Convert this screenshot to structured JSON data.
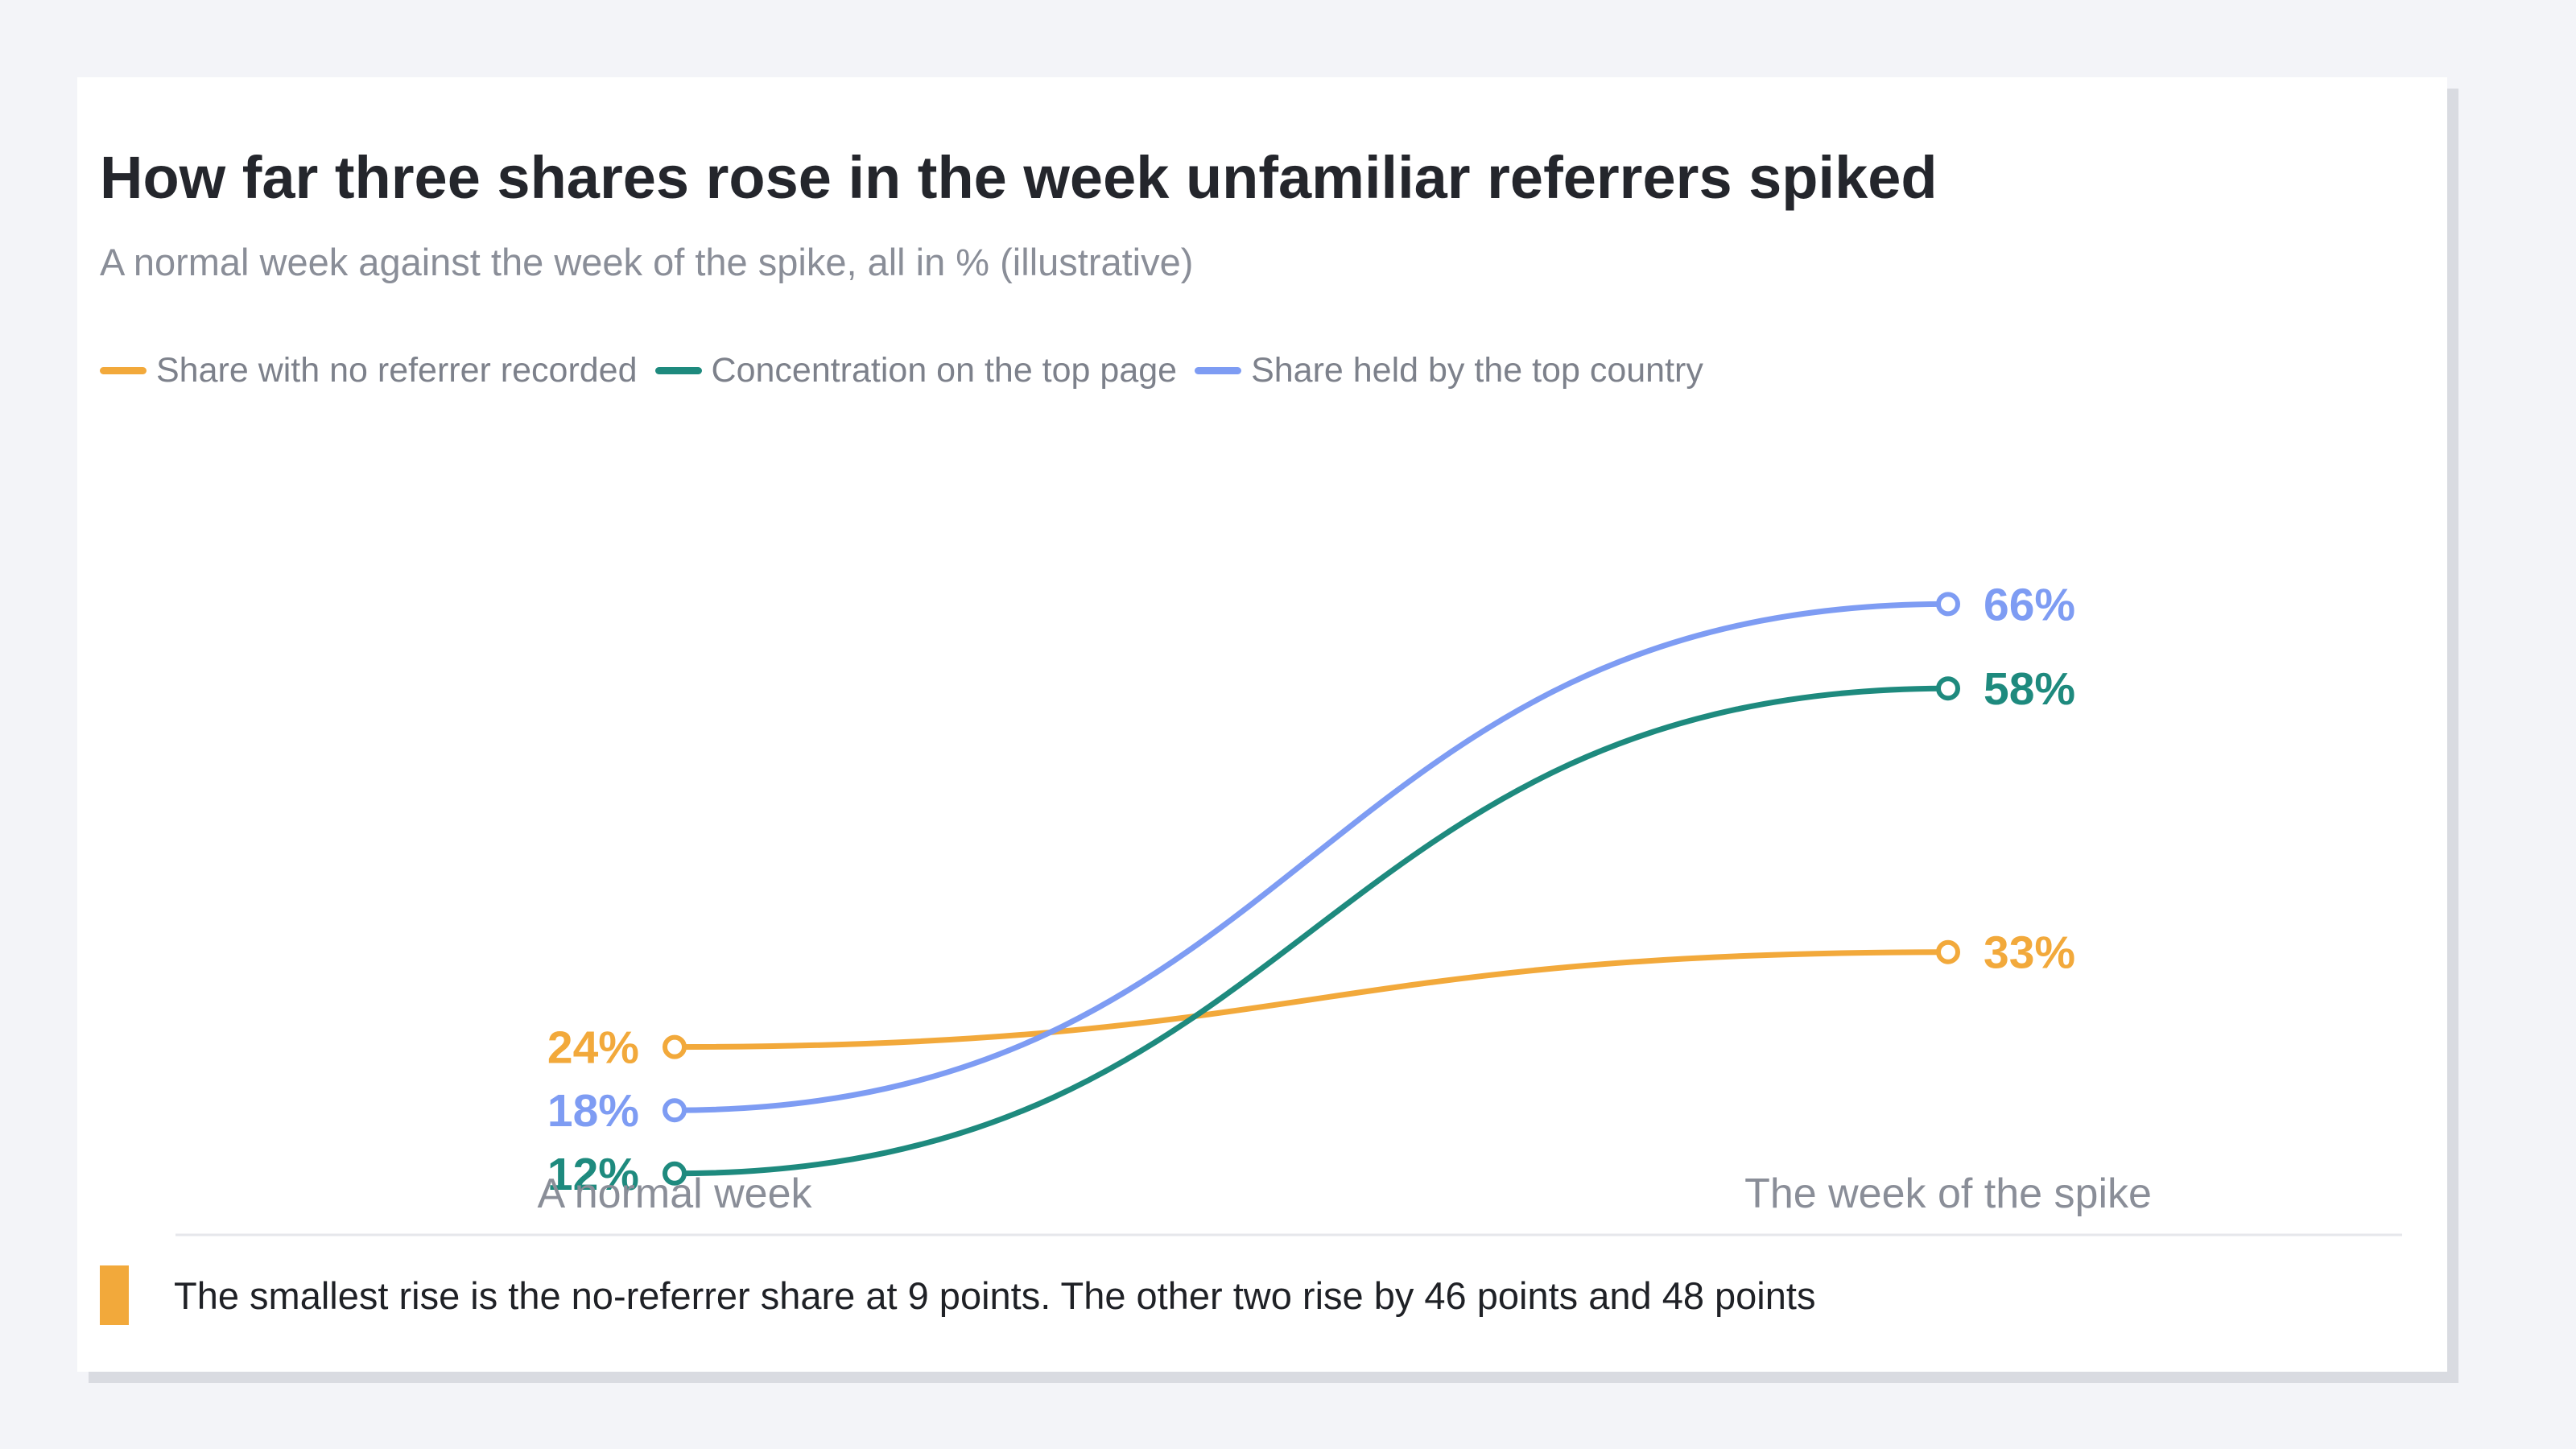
{
  "chart_data": {
    "type": "line",
    "title": "How far three shares rose in the week unfamiliar referrers spiked",
    "subtitle": "A normal week against the week of the spike, all in % (illustrative)",
    "categories": [
      "A normal week",
      "The week of the spike"
    ],
    "ylim": [
      0,
      100
    ],
    "grid": false,
    "legend_position": "top-left",
    "series": [
      {
        "name": "Share with no referrer recorded",
        "color": "#f2a93b",
        "values": [
          24,
          33
        ],
        "labels": [
          "24%",
          "33%"
        ]
      },
      {
        "name": "Concentration on the top page",
        "color": "#1e8a7e",
        "values": [
          12,
          58
        ],
        "labels": [
          "12%",
          "58%"
        ]
      },
      {
        "name": "Share held by the top country",
        "color": "#7e9cf3",
        "values": [
          18,
          66
        ],
        "labels": [
          "18%",
          "66%"
        ]
      }
    ]
  },
  "footnote": {
    "text": "The smallest rise is the no-referrer share at 9 points. The other two rise by 46 points and 48 points",
    "marker_color": "#f2a93b"
  },
  "colors": {
    "background": "#f3f4f8",
    "card": "#ffffff",
    "axis_text": "#8a8e98",
    "divider": "#e6e7eb"
  }
}
